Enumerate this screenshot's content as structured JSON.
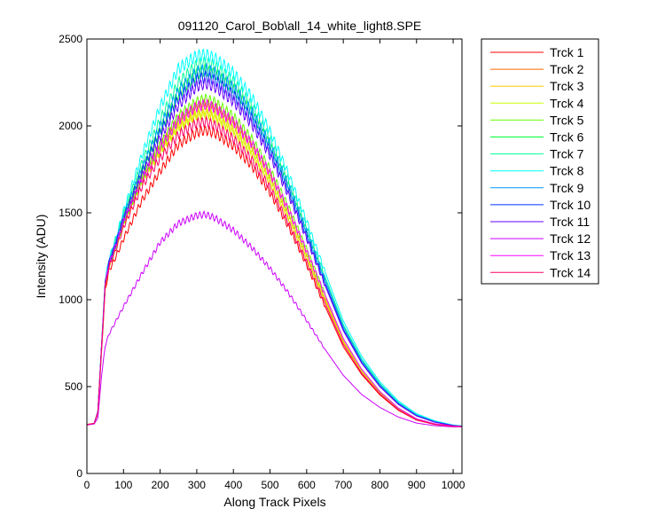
{
  "chart_data": {
    "type": "line",
    "title": "091120_Carol_Bob\\all_14_white_light8.SPE",
    "xlabel": "Along Track Pixels",
    "ylabel": "Intensity (ADU)",
    "xlim": [
      0,
      1024
    ],
    "ylim": [
      0,
      2500
    ],
    "xticks": [
      "0",
      "100",
      "200",
      "300",
      "400",
      "500",
      "600",
      "700",
      "800",
      "900",
      "1000"
    ],
    "yticks": [
      "0",
      "500",
      "1000",
      "1500",
      "2000",
      "2500"
    ],
    "grid": false,
    "legend_position": "outside-top-right",
    "x": [
      0,
      20,
      30,
      40,
      50,
      60,
      80,
      100,
      150,
      200,
      250,
      300,
      325,
      350,
      400,
      450,
      500,
      550,
      600,
      650,
      700,
      750,
      800,
      850,
      900,
      950,
      1000,
      1024
    ],
    "series": [
      {
        "name": "Trck 1",
        "color": "#ff0000",
        "values": [
          283,
          288,
          345,
          700,
          1055,
          1165,
          1250,
          1350,
          1571,
          1740,
          1894,
          1963,
          1975,
          1958,
          1884,
          1770,
          1616,
          1423,
          1200,
          963,
          730,
          570,
          452,
          364,
          307,
          282,
          271,
          270
        ]
      },
      {
        "name": "Trck 2",
        "color": "#ff6600",
        "values": [
          282,
          288,
          352,
          722,
          1083,
          1196,
          1312,
          1440,
          1690,
          1880,
          2030,
          2111,
          2124,
          2102,
          2019,
          1890,
          1717,
          1505,
          1264,
          1010,
          762,
          590,
          465,
          372,
          311,
          284,
          272,
          270
        ]
      },
      {
        "name": "Trck 3",
        "color": "#ffcc00",
        "values": [
          281,
          289,
          353,
          722,
          1080,
          1192,
          1305,
          1432,
          1677,
          1849,
          1990,
          2060,
          2068,
          2046,
          1967,
          1843,
          1676,
          1472,
          1240,
          994,
          752,
          584,
          461,
          370,
          311,
          284,
          272,
          270
        ]
      },
      {
        "name": "Trck 4",
        "color": "#ccff00",
        "values": [
          281,
          289,
          354,
          724,
          1083,
          1197,
          1309,
          1437,
          1684,
          1858,
          1998,
          2070,
          2080,
          2058,
          1979,
          1855,
          1688,
          1482,
          1248,
          1000,
          757,
          588,
          463,
          371,
          311,
          284,
          272,
          270
        ]
      },
      {
        "name": "Trck 5",
        "color": "#66ff00",
        "values": [
          281,
          289,
          355,
          727,
          1088,
          1201,
          1317,
          1452,
          1698,
          1890,
          2055,
          2138,
          2154,
          2134,
          2053,
          1924,
          1749,
          1533,
          1288,
          1030,
          776,
          601,
          472,
          377,
          315,
          286,
          273,
          271
        ]
      },
      {
        "name": "Trck 6",
        "color": "#00ff33",
        "values": [
          280,
          288,
          357,
          732,
          1095,
          1212,
          1332,
          1474,
          1742,
          1976,
          2183,
          2298,
          2320,
          2299,
          2215,
          2078,
          1888,
          1656,
          1393,
          1115,
          843,
          650,
          510,
          405,
          335,
          298,
          276,
          272
        ]
      },
      {
        "name": "Trck 7",
        "color": "#00ff99",
        "values": [
          280,
          288,
          358,
          736,
          1102,
          1220,
          1345,
          1491,
          1784,
          2034,
          2247,
          2350,
          2364,
          2343,
          2256,
          2117,
          1923,
          1686,
          1418,
          1134,
          857,
          660,
          517,
          410,
          338,
          300,
          277,
          273
        ]
      },
      {
        "name": "Trck 8",
        "color": "#00ffff",
        "values": [
          280,
          288,
          360,
          740,
          1110,
          1230,
          1360,
          1510,
          1830,
          2110,
          2330,
          2404,
          2410,
          2388,
          2305,
          2166,
          1968,
          1725,
          1451,
          1162,
          878,
          675,
          528,
          418,
          344,
          303,
          279,
          274
        ]
      },
      {
        "name": "Trck 9",
        "color": "#0099ff",
        "values": [
          280,
          288,
          357,
          733,
          1097,
          1214,
          1335,
          1477,
          1752,
          1996,
          2200,
          2310,
          2325,
          2305,
          2221,
          2084,
          1893,
          1660,
          1396,
          1117,
          845,
          651,
          511,
          406,
          336,
          298,
          277,
          272
        ]
      },
      {
        "name": "Trck 10",
        "color": "#0033ff",
        "values": [
          280,
          288,
          357,
          732,
          1095,
          1211,
          1330,
          1470,
          1735,
          1962,
          2155,
          2265,
          2284,
          2262,
          2178,
          2044,
          1857,
          1628,
          1370,
          1097,
          830,
          640,
          502,
          400,
          332,
          296,
          276,
          272
        ]
      },
      {
        "name": "Trck 11",
        "color": "#6600ff",
        "values": [
          280,
          288,
          356,
          730,
          1093,
          1208,
          1326,
          1463,
          1716,
          1934,
          2121,
          2228,
          2245,
          2224,
          2142,
          2011,
          1829,
          1605,
          1352,
          1084,
          822,
          635,
          499,
          398,
          331,
          295,
          275,
          272
        ]
      },
      {
        "name": "Trck 12",
        "color": "#cc00ff",
        "values": [
          279,
          285,
          320,
          560,
          735,
          800,
          880,
          960,
          1150,
          1330,
          1440,
          1485,
          1490,
          1470,
          1400,
          1300,
          1180,
          1040,
          880,
          715,
          565,
          455,
          380,
          325,
          290,
          275,
          268,
          268
        ]
      },
      {
        "name": "Trck 13",
        "color": "#ff00ff",
        "values": [
          280,
          288,
          354,
          726,
          1087,
          1200,
          1314,
          1447,
          1691,
          1875,
          2035,
          2112,
          2124,
          2103,
          2023,
          1898,
          1728,
          1518,
          1280,
          1028,
          776,
          600,
          471,
          377,
          314,
          286,
          273,
          271
        ]
      },
      {
        "name": "Trck 14",
        "color": "#ff0066",
        "values": [
          281,
          289,
          352,
          719,
          1077,
          1188,
          1296,
          1420,
          1651,
          1814,
          1950,
          2016,
          2024,
          2003,
          1926,
          1805,
          1643,
          1444,
          1218,
          980,
          744,
          578,
          458,
          368,
          309,
          283,
          271,
          270
        ]
      }
    ]
  }
}
